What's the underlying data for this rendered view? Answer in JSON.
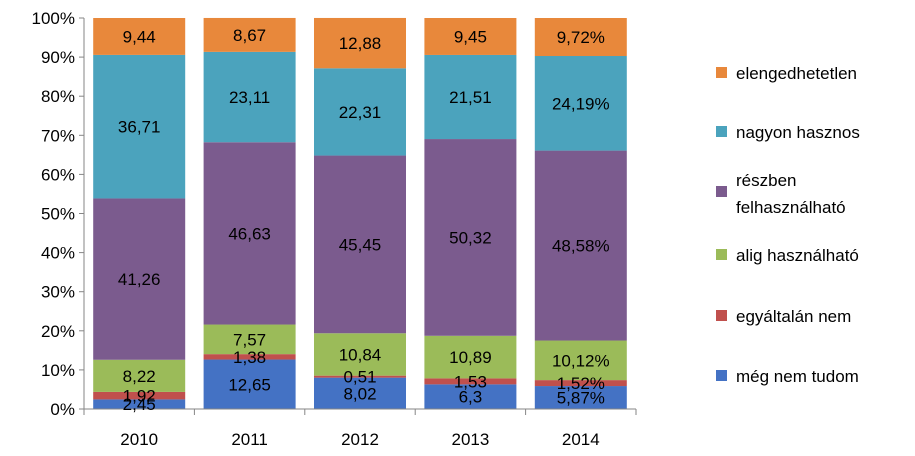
{
  "chart_data": {
    "type": "bar",
    "stacked": "percent",
    "categories": [
      "2010",
      "2011",
      "2012",
      "2013",
      "2014"
    ],
    "ylim": [
      0,
      100
    ],
    "yticks": [
      "0%",
      "10%",
      "20%",
      "30%",
      "40%",
      "50%",
      "60%",
      "70%",
      "80%",
      "90%",
      "100%"
    ],
    "grid": false,
    "legend_position": "right",
    "series": [
      {
        "name": "még nem tudom",
        "color": "#4472c4",
        "values": [
          2.45,
          12.65,
          8.02,
          6.3,
          5.87
        ],
        "labels": [
          "2,45",
          "12,65",
          "8,02",
          "6,3",
          "5,87%"
        ]
      },
      {
        "name": "egyáltalán nem",
        "color": "#c0504d",
        "values": [
          1.92,
          1.38,
          0.51,
          1.53,
          1.52
        ],
        "labels": [
          "1,92",
          "1,38",
          "0,51",
          "1,53",
          "1,52%"
        ]
      },
      {
        "name": "alig használható",
        "color": "#9bbb59",
        "values": [
          8.22,
          7.57,
          10.84,
          10.89,
          10.12
        ],
        "labels": [
          "8,22",
          "7,57",
          "10,84",
          "10,89",
          "10,12%"
        ]
      },
      {
        "name": "részben felhasználható",
        "legend_lines": [
          "részben",
          "felhasználható"
        ],
        "color": "#7b5b8e",
        "values": [
          41.26,
          46.63,
          45.45,
          50.32,
          48.58
        ],
        "labels": [
          "41,26",
          "46,63",
          "45,45",
          "50,32",
          "48,58%"
        ]
      },
      {
        "name": "nagyon hasznos",
        "color": "#4ba3bd",
        "values": [
          36.71,
          23.11,
          22.31,
          21.51,
          24.19
        ],
        "labels": [
          "36,71",
          "23,11",
          "22,31",
          "21,51",
          "24,19%"
        ]
      },
      {
        "name": "elengedhetetlen",
        "color": "#e8883b",
        "values": [
          9.44,
          8.67,
          12.88,
          9.45,
          9.72
        ],
        "labels": [
          "9,44",
          "8,67",
          "12,88",
          "9,45",
          "9,72%"
        ]
      }
    ]
  }
}
